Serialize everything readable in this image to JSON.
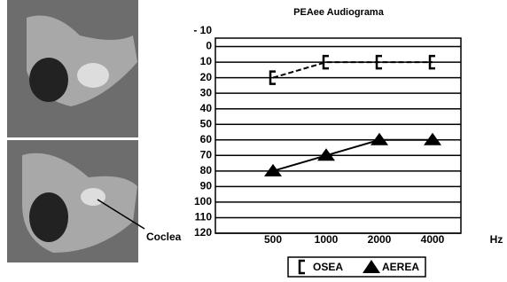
{
  "figure_label": "Coclea",
  "chart_data": {
    "type": "line",
    "title": "PEAee Audiograma",
    "categories": [
      "500",
      "1000",
      "2000",
      "4000"
    ],
    "x_label": "Hz",
    "series": [
      {
        "name": "OSEA",
        "color": "#000000",
        "marker": "bracket",
        "values": [
          20,
          10,
          10,
          10
        ]
      },
      {
        "name": "AEREA",
        "color": "#000000",
        "marker": "triangle",
        "values": [
          80,
          70,
          60,
          60
        ]
      }
    ],
    "ylim": [
      -10,
      120
    ],
    "y_reversed": true,
    "yticks": [
      {
        "value": -10,
        "label": "- 10"
      },
      0,
      10,
      20,
      30,
      40,
      50,
      60,
      70,
      80,
      90,
      100,
      110,
      120
    ],
    "grid": true,
    "legend": "bottom"
  }
}
